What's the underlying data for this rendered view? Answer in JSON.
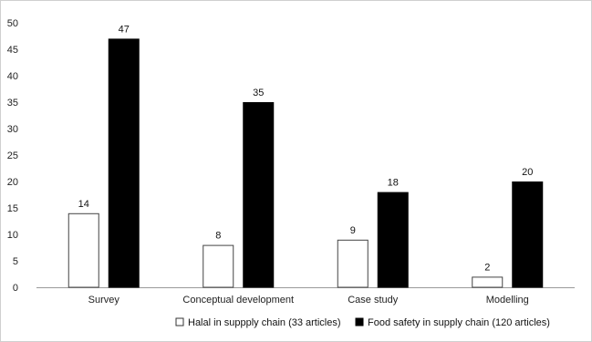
{
  "chart_data": {
    "type": "bar",
    "title": "",
    "xlabel": "",
    "ylabel": "",
    "categories": [
      "Survey",
      "Conceptual development",
      "Case study",
      "Modelling"
    ],
    "series": [
      {
        "name": "Halal in suppply chain (33 articles)",
        "values": [
          14,
          8,
          9,
          2
        ],
        "color": "#ffffff",
        "stroke": "#444444"
      },
      {
        "name": "Food safety in supply chain (120 articles)",
        "values": [
          47,
          35,
          18,
          20
        ],
        "color": "#000000",
        "stroke": "#000000"
      }
    ],
    "ylim": [
      0,
      50
    ],
    "yticks": [
      0,
      5,
      10,
      15,
      20,
      25,
      30,
      35,
      40,
      45,
      50
    ],
    "grid": false,
    "legend_position": "bottom"
  }
}
